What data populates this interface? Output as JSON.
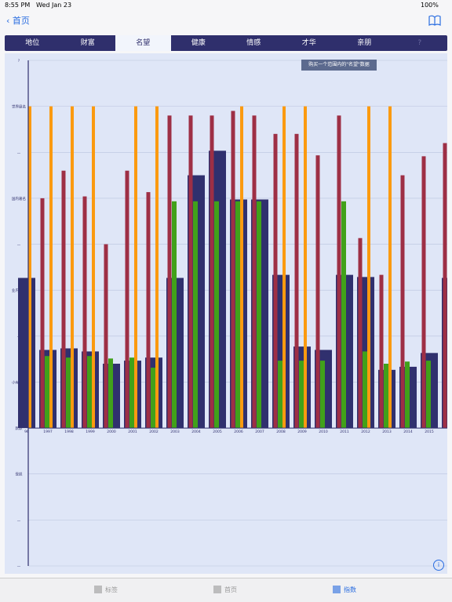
{
  "status_bar": {
    "time": "8:55 PM",
    "date": "Wed Jan 23",
    "battery": "100%"
  },
  "nav": {
    "back": "首页"
  },
  "tabs": [
    "地位",
    "财富",
    "名望",
    "健康",
    "情感",
    "才华",
    "亲朋",
    "?"
  ],
  "selected_tab": 2,
  "tooltip": "购买一个范围内的\"名望\"数据",
  "chart_data": {
    "type": "bar",
    "categories": [
      "96",
      "1997",
      "1998",
      "1999",
      "2000",
      "2001",
      "2002",
      "2003",
      "2004",
      "2005",
      "2006",
      "2007",
      "2008",
      "2009",
      "2010",
      "2011",
      "2012",
      "2013",
      "2014",
      "2015",
      "20"
    ],
    "series": [
      {
        "color": "#30306e",
        "values": [
          49,
          25.5,
          26,
          25,
          21,
          22,
          23,
          49,
          82.5,
          90.5,
          74.6,
          74.6,
          50,
          26.6,
          25.5,
          50,
          49.3,
          19,
          20,
          24.5,
          49
        ]
      },
      {
        "color": "#9e2f45",
        "values": [
          null,
          75,
          84,
          75.6,
          60,
          84,
          77,
          102,
          102,
          102,
          103.5,
          102,
          96,
          96,
          89,
          102,
          62,
          50,
          82.5,
          88.7,
          93
        ]
      },
      {
        "color": "#41a11a",
        "values": [
          null,
          23.5,
          23,
          23.5,
          22.7,
          23,
          19.7,
          74,
          74,
          74,
          74,
          74,
          22,
          22,
          22,
          74,
          25,
          21,
          21.7,
          22,
          null
        ]
      },
      {
        "color": "#fb9a10",
        "values": [
          105,
          105,
          105,
          105,
          null,
          105,
          105,
          null,
          null,
          null,
          105,
          null,
          105,
          105,
          null,
          null,
          105,
          105,
          null,
          null,
          null
        ]
      }
    ],
    "ylim": [
      -45,
      120
    ],
    "yticks": [
      {
        "value": -45,
        "label": "—"
      },
      {
        "value": -30,
        "label": "—"
      },
      {
        "value": -15,
        "label": "受损"
      },
      {
        "value": 0,
        "label": "默默"
      },
      {
        "value": 15,
        "label": "小有名气"
      },
      {
        "value": 30,
        "label": "—"
      },
      {
        "value": 45,
        "label": "业内著名"
      },
      {
        "value": 60,
        "label": "—"
      },
      {
        "value": 75,
        "label": "国内著名"
      },
      {
        "value": 90,
        "label": "—"
      },
      {
        "value": 105,
        "label": "世界级名"
      },
      {
        "value": 120,
        "label": "?"
      }
    ],
    "grid": true
  },
  "bottom_tabs": [
    "标签",
    "首页",
    "指数"
  ],
  "selected_bottom_tab": 2
}
